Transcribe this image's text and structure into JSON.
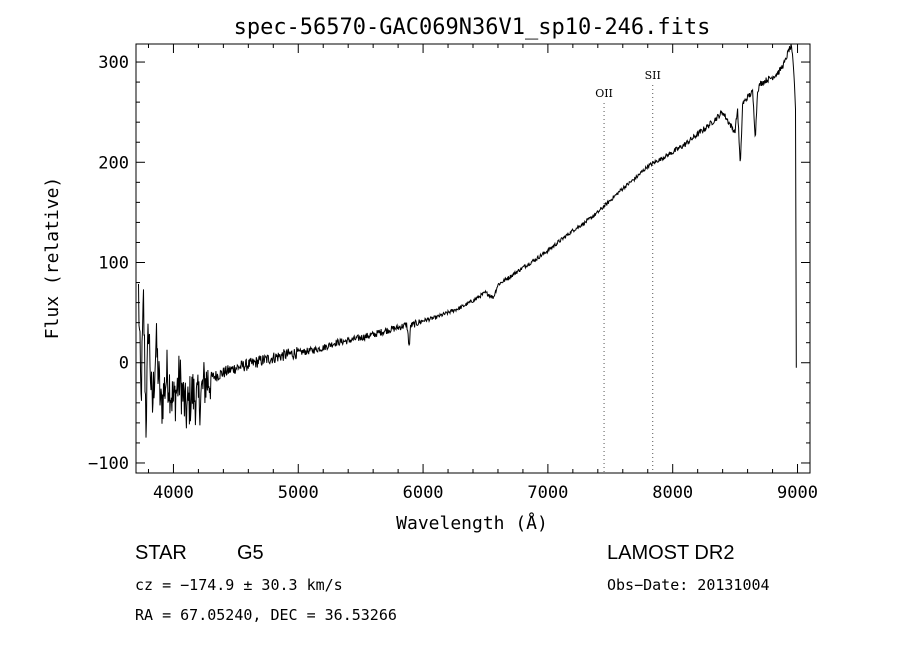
{
  "chart_data": {
    "type": "line",
    "title": "spec-56570-GAC069N36V1_sp10-246.fits",
    "xlabel": "Wavelength (Å)",
    "ylabel": "Flux (relative)",
    "xlim": [
      3700,
      9100
    ],
    "ylim": [
      -110,
      318
    ],
    "xticks": [
      4000,
      5000,
      6000,
      7000,
      8000,
      9000
    ],
    "yticks": [
      -100,
      0,
      100,
      200,
      300
    ],
    "grid": false,
    "lines": [
      {
        "label": "OII",
        "x": 7450
      },
      {
        "label": "SII",
        "x": 7840
      }
    ],
    "series": [
      {
        "x": [
          3720,
          3740,
          3760,
          3780,
          3800,
          3830,
          3860,
          3900,
          3950,
          4000,
          4050,
          4100,
          4150,
          4200,
          4250,
          4300,
          4400,
          4500,
          4600,
          4700,
          4800,
          4900,
          5000,
          5100,
          5200,
          5300,
          5400,
          5500,
          5600,
          5700,
          5800,
          5870,
          5890,
          5900,
          6000,
          6100,
          6200,
          6300,
          6400,
          6500,
          6563,
          6600,
          6700,
          6800,
          6900,
          7000,
          7100,
          7200,
          7300,
          7400,
          7500,
          7600,
          7700,
          7800,
          7900,
          8000,
          8100,
          8200,
          8300,
          8400,
          8498,
          8520,
          8542,
          8560,
          8600,
          8640,
          8662,
          8680,
          8700,
          8750,
          8800,
          8850,
          8900,
          8930,
          8950,
          8965,
          8975,
          8985,
          8990
        ],
        "y": [
          70,
          -40,
          60,
          -60,
          40,
          -50,
          20,
          -45,
          -10,
          -40,
          -15,
          -50,
          -30,
          -40,
          -20,
          -15,
          -10,
          -5,
          -2,
          2,
          5,
          8,
          10,
          12,
          15,
          20,
          22,
          25,
          28,
          32,
          35,
          38,
          15,
          37,
          42,
          45,
          50,
          55,
          62,
          70,
          65,
          78,
          86,
          95,
          103,
          112,
          122,
          132,
          140,
          150,
          162,
          174,
          184,
          196,
          203,
          210,
          218,
          228,
          238,
          250,
          230,
          253,
          195,
          258,
          265,
          270,
          225,
          272,
          278,
          282,
          285,
          290,
          300,
          312,
          315,
          300,
          280,
          250,
          0
        ]
      }
    ]
  },
  "info": {
    "object_class": "STAR",
    "subclass": "G5",
    "survey": "LAMOST DR2",
    "redshift": "cz = −174.9 ± 30.3 km/s",
    "obs_date": "Obs−Date: 20131004",
    "coords": "RA =  67.05240, DEC =  36.53266"
  }
}
